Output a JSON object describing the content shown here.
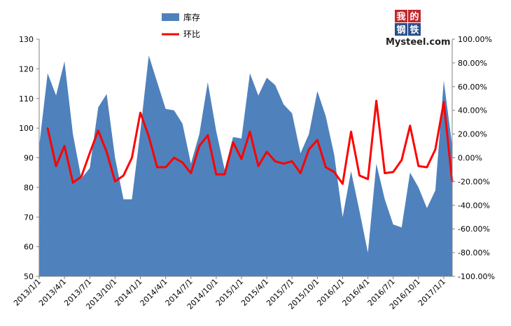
{
  "logo": {
    "cn_chars": [
      "我",
      "的",
      "钢",
      "铁"
    ],
    "text": "Mysteel.com"
  },
  "chart_data": {
    "type": "area",
    "series": [
      {
        "name": "库存",
        "type": "area",
        "axis": "left",
        "color": "#4f81bd",
        "values": [
          94,
          118.5,
          111,
          122.5,
          98,
          83,
          86.5,
          107,
          111.5,
          90,
          76,
          76,
          99,
          124.5,
          115.5,
          106.5,
          106,
          101.5,
          88,
          98,
          115.5,
          99,
          86,
          97,
          96.5,
          118.5,
          111,
          117,
          114.5,
          108,
          105,
          91.5,
          98,
          112.5,
          104,
          91,
          70,
          85.5,
          72,
          58,
          88,
          76,
          67.5,
          66.5,
          85,
          80,
          73,
          79,
          116,
          94
        ]
      },
      {
        "name": "环比",
        "type": "line",
        "axis": "right",
        "color": "#ff0000",
        "values": [
          25,
          -7,
          10,
          -21,
          -16,
          4,
          23,
          5,
          -20,
          -15,
          0,
          38,
          18,
          -8,
          -8,
          0,
          -4,
          -13,
          10,
          19,
          -14,
          -14,
          13,
          -1,
          22,
          -7,
          5,
          -3,
          -5,
          -3,
          -13,
          7,
          15,
          -8,
          -12,
          -22,
          22,
          -15,
          -18,
          48,
          -13,
          -12,
          -2,
          27,
          -7,
          -8,
          7,
          47,
          -20
        ]
      }
    ],
    "x_labels": [
      "2013/1/1",
      "2013/4/1",
      "2013/7/1",
      "2013/10/1",
      "2014/1/1",
      "2014/4/1",
      "2014/7/1",
      "2014/10/1",
      "2015/1/1",
      "2015/4/1",
      "2015/7/1",
      "2015/10/1",
      "2016/1/1",
      "2016/4/1",
      "2016/7/1",
      "2016/10/1",
      "2017/1/1"
    ],
    "y_left": {
      "min": 50,
      "max": 130,
      "step": 10,
      "ticks": [
        "50",
        "60",
        "70",
        "80",
        "90",
        "100",
        "110",
        "120",
        "130"
      ]
    },
    "y_right": {
      "min": -100,
      "max": 100,
      "step": 20,
      "ticks": [
        "-100.00%",
        "-80.00%",
        "-60.00%",
        "-40.00%",
        "-20.00%",
        "0.00%",
        "20.00%",
        "40.00%",
        "60.00%",
        "80.00%",
        "100.00%"
      ]
    },
    "legend": {
      "placement": "top-center",
      "entries": [
        "库存",
        "环比"
      ]
    },
    "grid": false,
    "title": "",
    "xlabel": "",
    "ylabel": ""
  }
}
